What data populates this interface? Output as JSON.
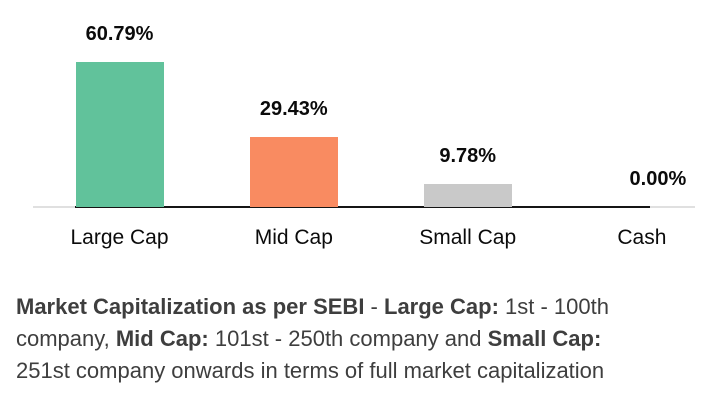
{
  "chart_data": {
    "type": "bar",
    "categories": [
      "Large Cap",
      "Mid Cap",
      "Small Cap",
      "Cash"
    ],
    "values": [
      60.79,
      29.43,
      9.78,
      0.0
    ],
    "value_labels": [
      "60.79%",
      "29.43%",
      "9.78%",
      "0.00%"
    ],
    "bar_colors": [
      "#61C29B",
      "#F98B61",
      "#C9C9C9",
      "#E0E0E0"
    ],
    "title": "",
    "xlabel": "",
    "ylabel": "",
    "ylim": [
      0,
      70
    ],
    "grid": false,
    "legend_position": "none",
    "y_axis_visible": false,
    "value_label_position": "above-bar"
  },
  "footnote": {
    "lines": [
      {
        "segments": [
          {
            "text": "Market Capitalization as per SEBI",
            "bold": true
          },
          {
            "text": " - ",
            "bold": false
          },
          {
            "text": "Large Cap:",
            "bold": true
          },
          {
            "text": " 1st - 100th",
            "bold": false
          }
        ]
      },
      {
        "segments": [
          {
            "text": "company, ",
            "bold": false
          },
          {
            "text": "Mid Cap:",
            "bold": true
          },
          {
            "text": " 101st - 250th company and ",
            "bold": false
          },
          {
            "text": "Small Cap:",
            "bold": true
          }
        ]
      },
      {
        "segments": [
          {
            "text": "251st company onwards in terms of full market capitalization",
            "bold": false
          }
        ]
      }
    ]
  },
  "colors": {
    "large_cap_bar": "#61C29B",
    "mid_cap_bar": "#F98B61",
    "small_cap_bar": "#C9C9C9",
    "axis_line": "#151515",
    "axis_line_light": "#E0E0E0",
    "label_text": "#0B0B0B",
    "footnote_text": "#3E3E3E",
    "background": "#FFFFFF"
  }
}
